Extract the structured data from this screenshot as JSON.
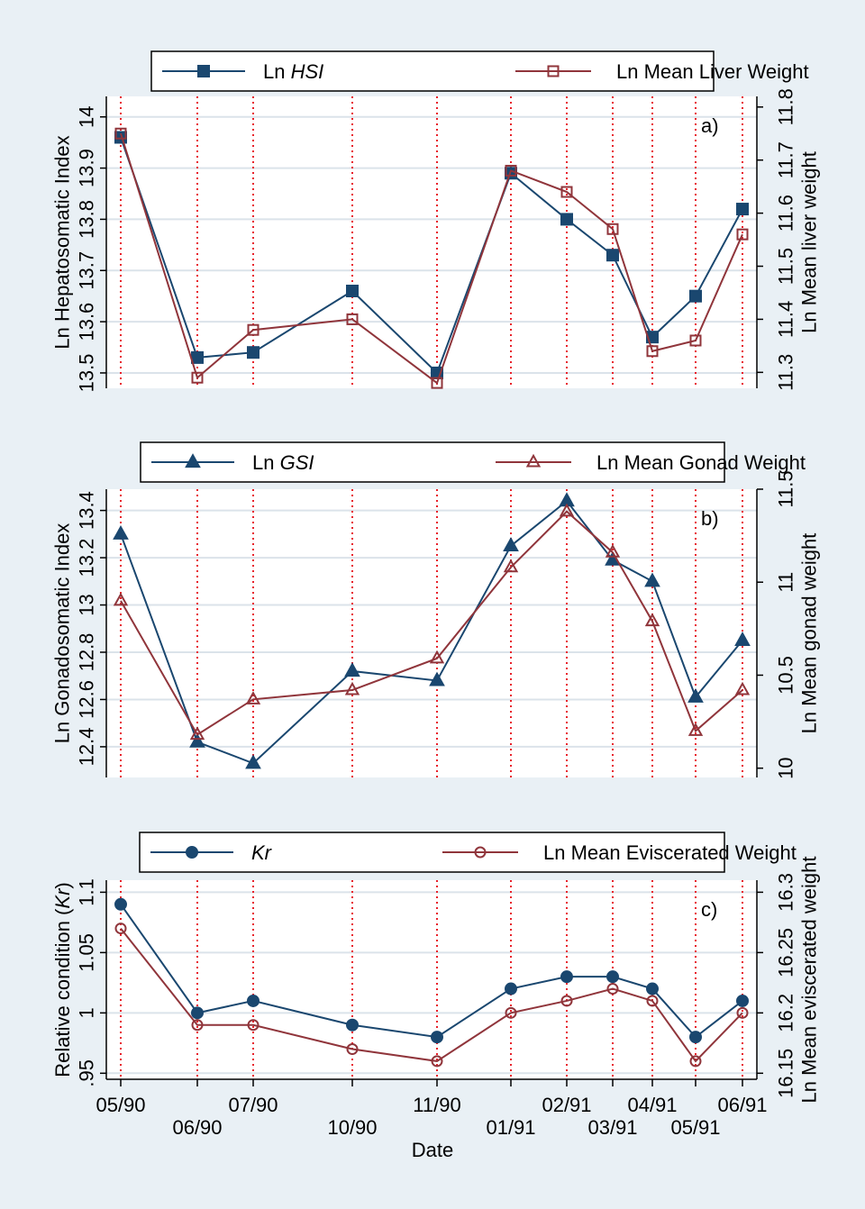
{
  "chart_data": [
    {
      "type": "line",
      "panel_label": "a)",
      "x": [
        "05/90",
        "06/90",
        "07/90",
        "10/90",
        "11/90",
        "01/91",
        "02/91",
        "03/91",
        "04/91",
        "05/91",
        "06/91"
      ],
      "ylabel": "Ln Hepatosomatic Index",
      "y2label": "Ln Mean liver weight",
      "ylim": [
        13.47,
        14.04
      ],
      "yticks": [
        "13.5",
        "13.6",
        "13.7",
        "13.8",
        "13.9",
        "14"
      ],
      "y2lim": [
        11.27,
        11.82
      ],
      "y2ticks": [
        "11.3",
        "11.4",
        "11.5",
        "11.6",
        "11.7",
        "11.8"
      ],
      "legend": {
        "position": "top"
      },
      "series": [
        {
          "name_prefix": "Ln ",
          "name_italic": "HSI",
          "axis": "left",
          "marker": "square-filled",
          "color": "#1a476f",
          "values": [
            13.96,
            13.53,
            13.54,
            13.66,
            13.5,
            13.89,
            13.8,
            13.73,
            13.57,
            13.65,
            13.82
          ]
        },
        {
          "name_prefix": "Ln Mean Liver Weight",
          "name_italic": "",
          "axis": "right",
          "marker": "square-open",
          "color": "#90353b",
          "values": [
            11.75,
            11.29,
            11.38,
            11.4,
            11.28,
            11.68,
            11.64,
            11.57,
            11.34,
            11.36,
            11.56
          ]
        }
      ]
    },
    {
      "type": "line",
      "panel_label": "b)",
      "x": [
        "05/90",
        "06/90",
        "07/90",
        "10/90",
        "11/90",
        "01/91",
        "02/91",
        "03/91",
        "04/91",
        "05/91",
        "06/91"
      ],
      "ylabel": "Ln Gonadosomatic Index",
      "y2label": "Ln Mean gonad weight",
      "ylim": [
        12.27,
        13.49
      ],
      "yticks": [
        "12.4",
        "12.6",
        "12.8",
        "13",
        "13.2",
        "13.4"
      ],
      "y2lim": [
        9.95,
        11.5
      ],
      "y2ticks": [
        "10",
        "10.5",
        "11",
        "11.5"
      ],
      "legend": {
        "position": "top"
      },
      "series": [
        {
          "name_prefix": "Ln ",
          "name_italic": "GSI",
          "axis": "left",
          "marker": "triangle-filled",
          "color": "#1a476f",
          "values": [
            13.3,
            12.42,
            12.33,
            12.72,
            12.68,
            13.25,
            13.44,
            13.19,
            13.1,
            12.61,
            12.85
          ]
        },
        {
          "name_prefix": "Ln Mean Gonad Weight",
          "name_italic": "",
          "axis": "right",
          "marker": "triangle-open",
          "color": "#90353b",
          "values": [
            10.9,
            10.18,
            10.37,
            10.42,
            10.59,
            11.08,
            11.38,
            11.16,
            10.79,
            10.2,
            10.42
          ]
        }
      ]
    },
    {
      "type": "line",
      "panel_label": "c)",
      "x": [
        "05/90",
        "06/90",
        "07/90",
        "10/90",
        "11/90",
        "01/91",
        "02/91",
        "03/91",
        "04/91",
        "05/91",
        "06/91"
      ],
      "xlabel": "Date",
      "ylabel_prefix": "Relative condition (",
      "ylabel_italic": "Kr",
      "ylabel_suffix": ")",
      "y2label": "Ln Mean eviscerated weight",
      "ylim": [
        0.945,
        1.11
      ],
      "yticks": [
        ".95",
        "1",
        "1.05",
        "1.1"
      ],
      "y2lim": [
        16.145,
        16.31
      ],
      "y2ticks": [
        "16.15",
        "16.2",
        "16.25",
        "16.3"
      ],
      "legend": {
        "position": "top"
      },
      "series": [
        {
          "name_prefix": "",
          "name_italic": "Kr",
          "axis": "left",
          "marker": "circle-filled",
          "color": "#1a476f",
          "values": [
            1.09,
            1.0,
            1.01,
            0.99,
            0.98,
            1.02,
            1.03,
            1.03,
            1.02,
            0.98,
            1.01
          ]
        },
        {
          "name_prefix": "Ln Mean Eviscerated Weight",
          "name_italic": "",
          "axis": "right",
          "marker": "circle-open",
          "color": "#90353b",
          "values": [
            16.27,
            16.19,
            16.19,
            16.17,
            16.16,
            16.2,
            16.21,
            16.22,
            16.21,
            16.16,
            16.2
          ]
        }
      ]
    }
  ],
  "x_tick_labels_upper": [
    "05/90",
    "07/90",
    "11/90",
    "02/91",
    "04/91",
    "06/91"
  ],
  "x_tick_labels_lower": [
    "06/90",
    "10/90",
    "01/91",
    "03/91",
    "05/91"
  ],
  "colors": {
    "background": "#e9f0f5",
    "plot_bg": "#ffffff",
    "grid": "#dbe3ea",
    "series1": "#1a476f",
    "series2": "#90353b",
    "vline": "#e8202a"
  }
}
